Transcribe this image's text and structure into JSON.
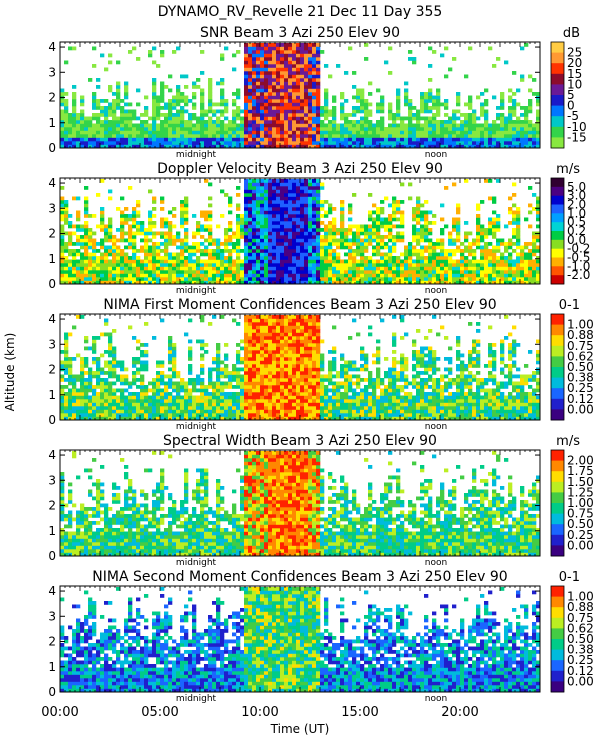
{
  "figure": {
    "title": "DYNAMO_RV_Revelle   21 Dec 11 Day 355",
    "ylabel": "Altitude (km)",
    "xlabel": "Time (UT)",
    "time_ticks": [
      "00:00",
      "05:00",
      "10:00",
      "15:00",
      "20:00"
    ],
    "day_markers": [
      "midnight",
      "noon"
    ]
  },
  "chart_data": [
    {
      "type": "heatmap",
      "title": "SNR Beam 3 Azi 250 Elev 90",
      "units": "dB",
      "xlim": [
        0,
        24
      ],
      "ylim": [
        0,
        4.2
      ],
      "yticks": [
        "0",
        "1",
        "2",
        "3",
        "4"
      ],
      "colorbar_labels": [
        "25",
        "20",
        "15",
        "10",
        "5",
        "0",
        "-5",
        "-10",
        "-15"
      ],
      "colorbar_colors": [
        "#ffcc44",
        "#ff9933",
        "#ff3300",
        "#8c0c2c",
        "#6a1a96",
        "#1a1ac8",
        "#0077ff",
        "#00c8c8",
        "#33d44a",
        "#88e840"
      ]
    },
    {
      "type": "heatmap",
      "title": "Doppler Velocity Beam 3 Azi 250 Elev 90",
      "units": "m/s",
      "xlim": [
        0,
        24
      ],
      "ylim": [
        0,
        4.2
      ],
      "yticks": [
        "0",
        "1",
        "2",
        "3",
        "4"
      ],
      "colorbar_labels": [
        "5.0",
        "3.0",
        "2.0",
        "1.0",
        "0.5",
        "0.2",
        "0.0",
        "-0.2",
        "-0.5",
        "-1.0",
        "-2.0"
      ],
      "colorbar_colors": [
        "#300030",
        "#4b0082",
        "#0000cd",
        "#1e60ff",
        "#00a0ff",
        "#00d4d4",
        "#00cc44",
        "#88dd22",
        "#ffff00",
        "#ffb000",
        "#ff5500",
        "#cc0000"
      ]
    },
    {
      "type": "heatmap",
      "title": "NIMA First Moment Confidences Beam 3 Azi 250 Elev 90",
      "units": "0-1",
      "xlim": [
        0,
        24
      ],
      "ylim": [
        0,
        4.2
      ],
      "yticks": [
        "0",
        "1",
        "2",
        "3",
        "4"
      ],
      "colorbar_labels": [
        "1.00",
        "0.88",
        "0.75",
        "0.62",
        "0.50",
        "0.38",
        "0.25",
        "0.12",
        "0.00"
      ],
      "colorbar_colors": [
        "#ff2200",
        "#ff8800",
        "#ffdd00",
        "#bbee22",
        "#44cc44",
        "#00cc88",
        "#00bbdd",
        "#1a66ff",
        "#2020cc",
        "#3a0080"
      ]
    },
    {
      "type": "heatmap",
      "title": "Spectral Width Beam 3 Azi 250 Elev 90",
      "units": "m/s",
      "xlim": [
        0,
        24
      ],
      "ylim": [
        0,
        4.2
      ],
      "yticks": [
        "0",
        "1",
        "2",
        "3",
        "4"
      ],
      "colorbar_labels": [
        "2.00",
        "1.75",
        "1.50",
        "1.25",
        "1.00",
        "0.75",
        "0.50",
        "0.25",
        "0.00"
      ],
      "colorbar_colors": [
        "#ff2200",
        "#ff8800",
        "#ffdd00",
        "#bbee22",
        "#44cc44",
        "#00cc88",
        "#00bbdd",
        "#1a66ff",
        "#2020cc",
        "#3a0080"
      ]
    },
    {
      "type": "heatmap",
      "title": "NIMA Second Moment Confidences Beam 3 Azi 250 Elev 90",
      "units": "0-1",
      "xlim": [
        0,
        24
      ],
      "ylim": [
        0,
        4.2
      ],
      "yticks": [
        "0",
        "1",
        "2",
        "3",
        "4"
      ],
      "colorbar_labels": [
        "1.00",
        "0.88",
        "0.75",
        "0.62",
        "0.50",
        "0.38",
        "0.25",
        "0.12",
        "0.00"
      ],
      "colorbar_colors": [
        "#ff2200",
        "#ff8800",
        "#ffdd00",
        "#bbee22",
        "#44cc44",
        "#00cc88",
        "#00bbdd",
        "#1a66ff",
        "#2020cc",
        "#3a0080"
      ]
    }
  ]
}
